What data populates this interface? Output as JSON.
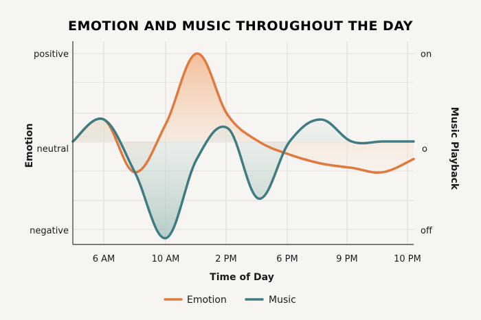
{
  "chart_data": {
    "type": "line",
    "title": "EMOTION AND MUSIC THROUGHOUT THE DAY",
    "xlabel": "Time of Day",
    "ylabel": "Emotion",
    "y2label": "Music Playback",
    "categories": [
      "6 AM",
      "10 AM",
      "2 PM",
      "6 PM",
      "9 PM",
      "10 PM"
    ],
    "y_ticks": [
      "positive",
      "neutral",
      "negative"
    ],
    "y2_ticks": [
      "on",
      "o",
      "off"
    ],
    "ylim": [
      -1,
      1
    ],
    "grid": true,
    "legend_position": "bottom-center",
    "series": [
      {
        "name": "Emotion",
        "color": "#df7a3f",
        "x": [
          0,
          0.5,
          1.0,
          1.5,
          2.0,
          2.5,
          3.0,
          3.5,
          4.0,
          4.5,
          5.0,
          5.5
        ],
        "values": [
          0.0,
          0.25,
          -0.35,
          0.2,
          1.0,
          0.3,
          0.0,
          -0.15,
          -0.25,
          -0.3,
          -0.35,
          -0.2
        ]
      },
      {
        "name": "Music",
        "color": "#3e7b83",
        "x": [
          0,
          0.5,
          1.0,
          1.5,
          2.0,
          2.5,
          3.0,
          3.5,
          4.0,
          4.5,
          5.0,
          5.5
        ],
        "values": [
          0.0,
          0.25,
          -0.35,
          -1.1,
          -0.2,
          0.15,
          -0.65,
          0.0,
          0.25,
          0.0,
          0.0,
          0.0
        ]
      }
    ]
  }
}
